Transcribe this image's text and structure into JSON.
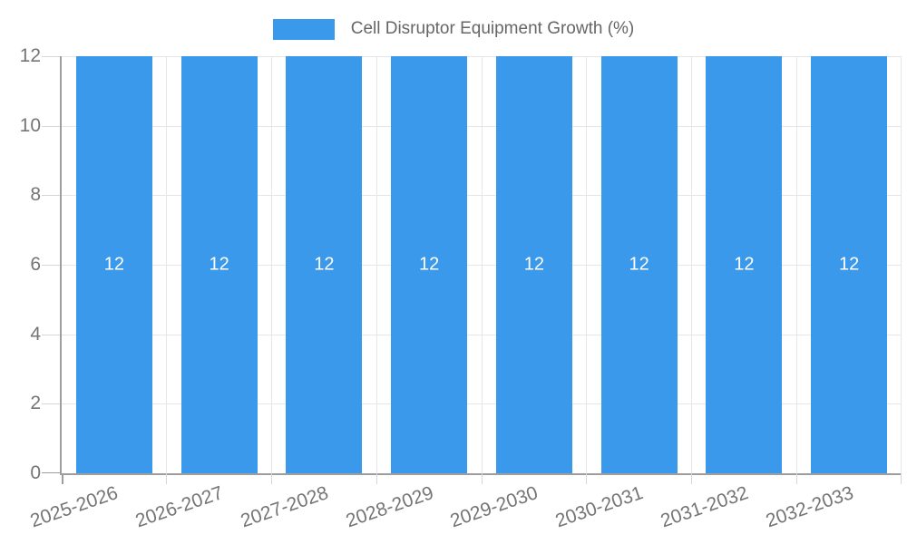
{
  "chart_data": {
    "type": "bar",
    "title": "Cell Disruptor Equipment Growth (%)",
    "legend": [
      "Cell Disruptor Equipment Growth (%)"
    ],
    "legend_position": "top-center",
    "categories": [
      "2025-2026",
      "2026-2027",
      "2027-2028",
      "2028-2029",
      "2029-2030",
      "2030-2031",
      "2031-2032",
      "2032-2033"
    ],
    "values": [
      12,
      12,
      12,
      12,
      12,
      12,
      12,
      12
    ],
    "bar_value_labels": [
      "12",
      "12",
      "12",
      "12",
      "12",
      "12",
      "12",
      "12"
    ],
    "xlabel": "",
    "ylabel": "",
    "ylim": [
      0,
      12
    ],
    "y_ticks": [
      0,
      2,
      4,
      6,
      8,
      10,
      12
    ],
    "grid": true,
    "x_tick_rotation_deg": -19,
    "colors": {
      "bar": "#3B99EC",
      "bar_label": "#FFFFFF",
      "grid": "#E6E6E6",
      "tick": "#D6D6D6",
      "axis": "#9E9E9E",
      "axis_label": "#757575",
      "legend_text": "#666666",
      "background": "#FFFFFF"
    }
  }
}
